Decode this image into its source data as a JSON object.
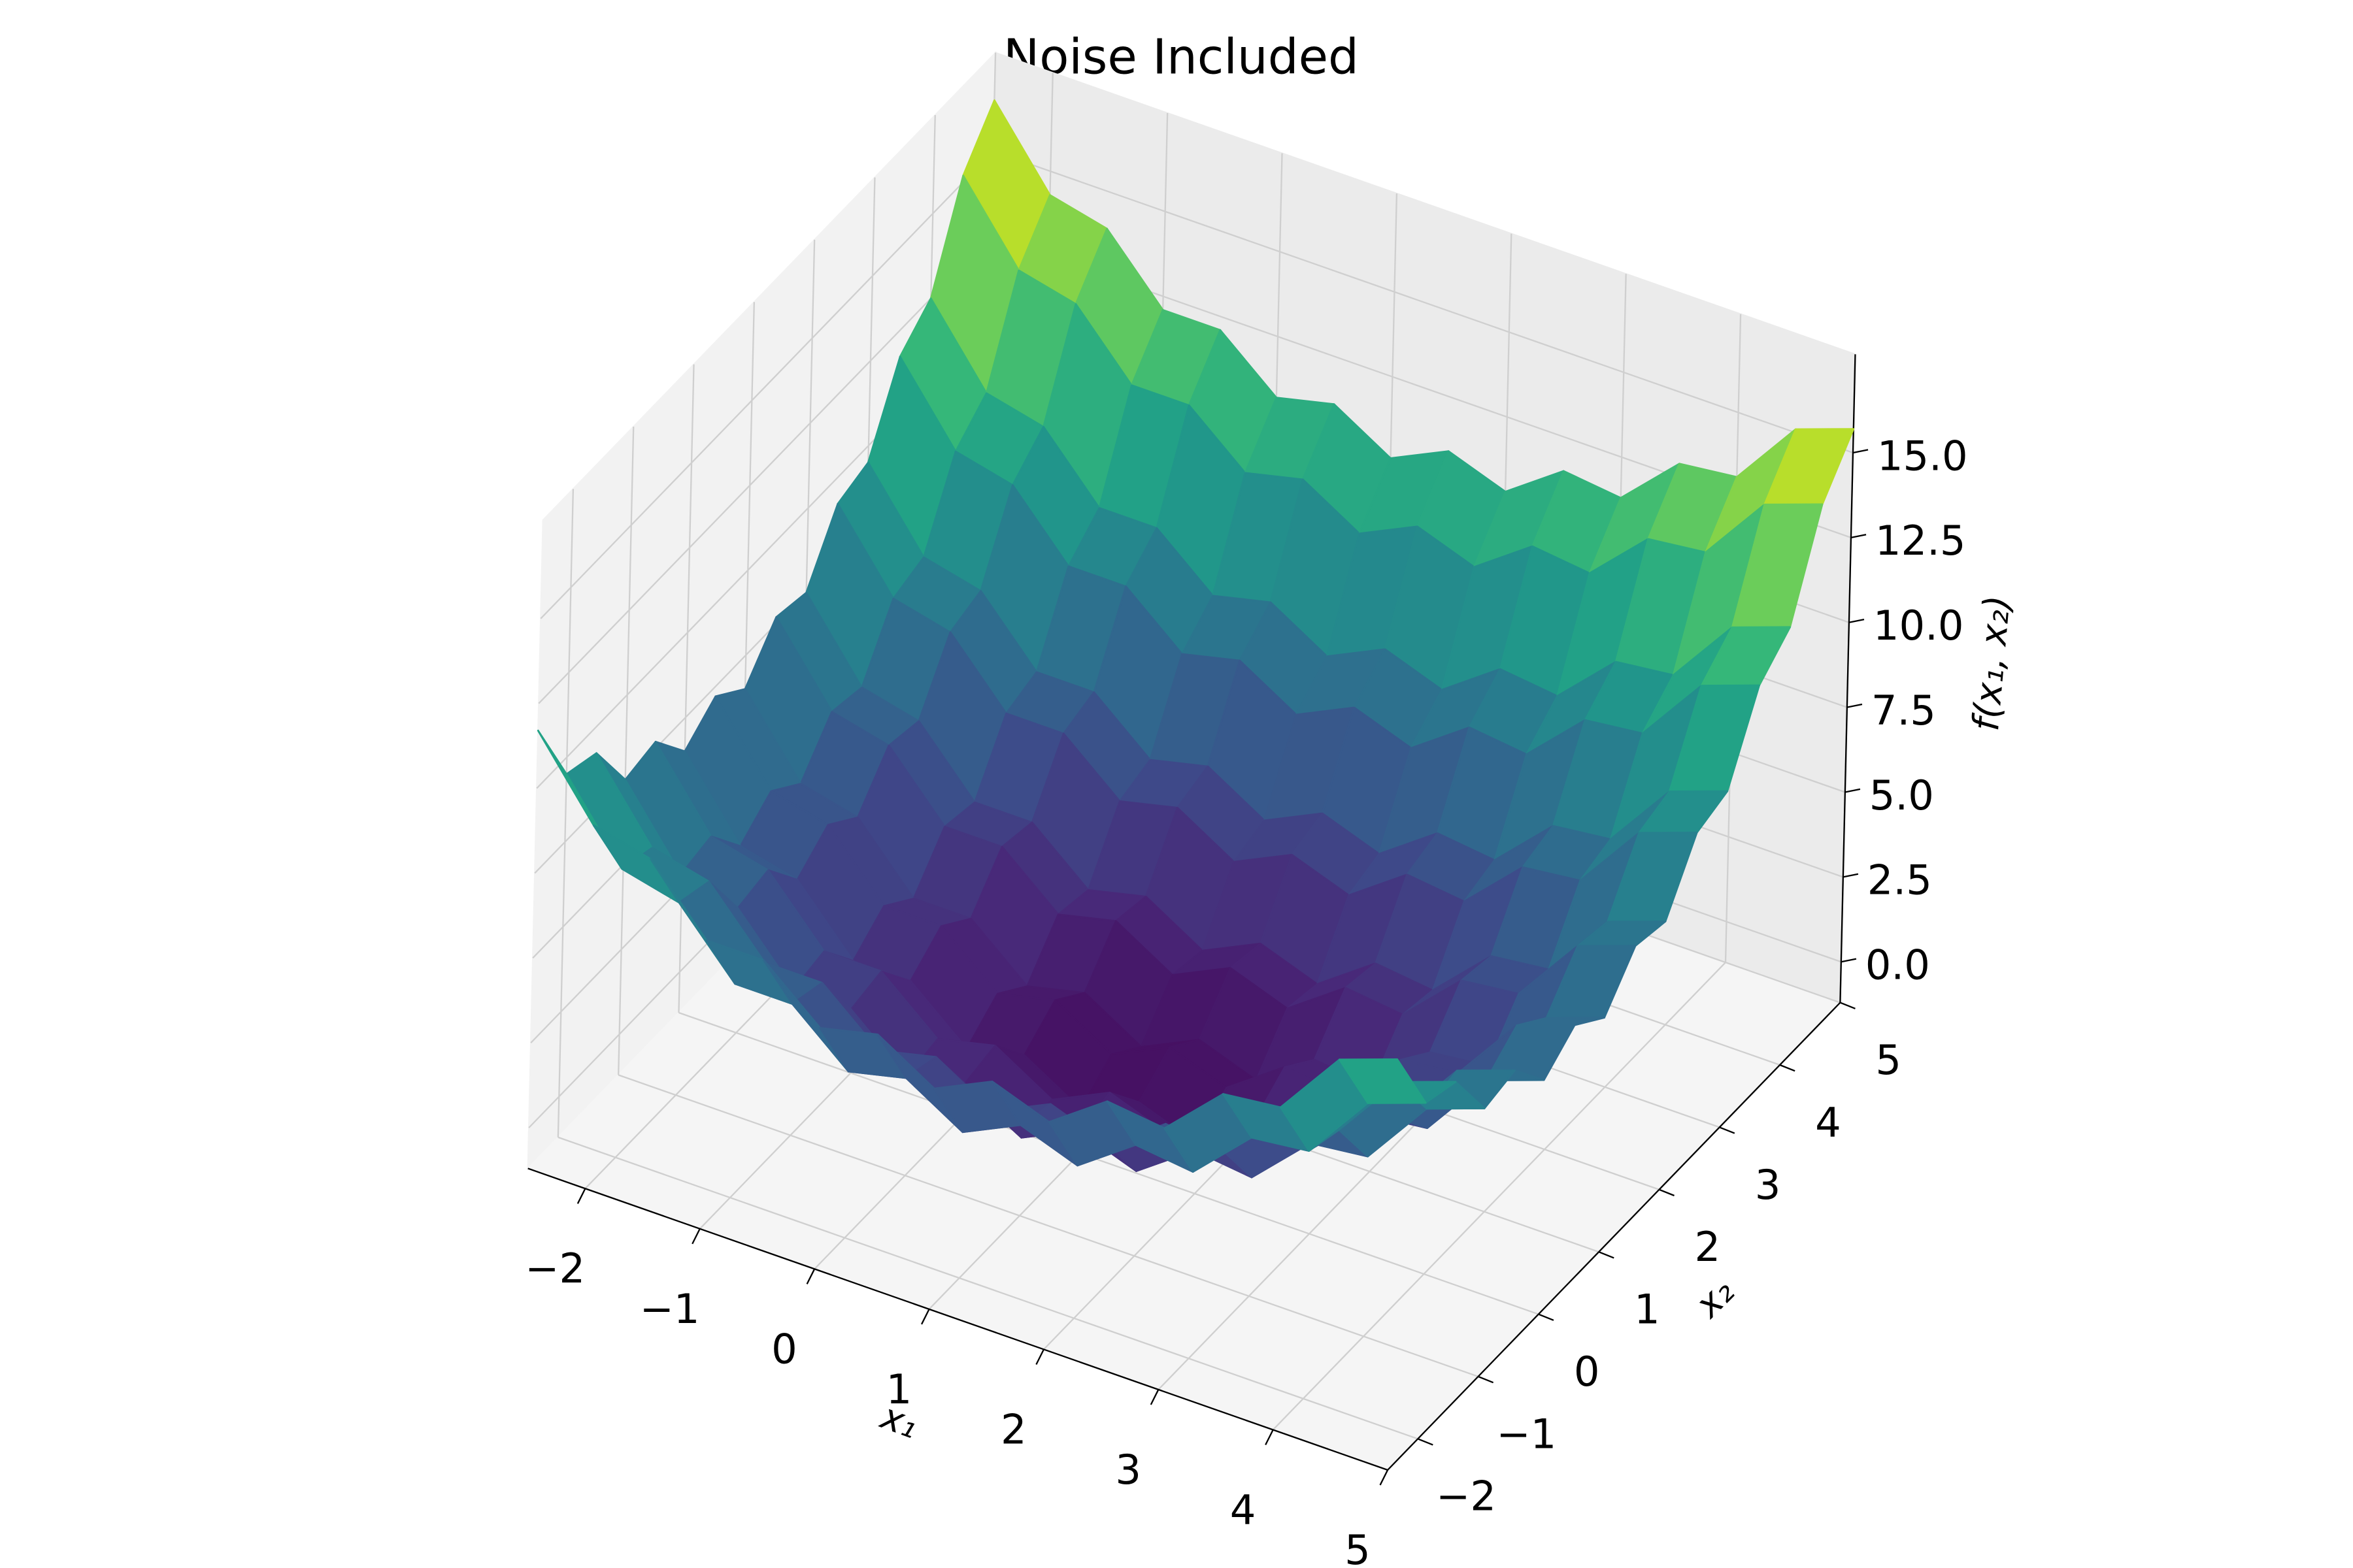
{
  "chart_data": {
    "type": "surface",
    "title": "Noise Included",
    "xlabel": "x₁",
    "ylabel": "x₂",
    "zlabel": "f(x₁, x₂)",
    "x": [
      -2.5,
      -2,
      -1.5,
      -1,
      -0.5,
      0,
      0.5,
      1,
      1.5,
      2,
      2.5,
      3,
      3.5,
      4,
      4.5,
      5
    ],
    "y": [
      -2.5,
      -2,
      -1.5,
      -1,
      -0.5,
      0,
      0.5,
      1,
      1.5,
      2,
      2.5,
      3,
      3.5,
      4,
      4.5,
      5
    ],
    "z": [
      [
        11.7,
        9.5,
        9.1,
        7.3,
        7.3,
        5.9,
        6.3,
        5.3,
        6.1,
        5.5,
        6.7,
        6.5,
        8.1,
        8.3,
        10.3,
        10.9
      ],
      [
        9.5,
        7.3,
        6.9,
        5.1,
        5.1,
        3.7,
        4.1,
        3.1,
        3.9,
        3.3,
        4.5,
        4.3,
        5.9,
        6.1,
        8.1,
        8.7
      ],
      [
        9.2,
        7.0,
        6.6,
        4.8,
        4.8,
        3.4,
        3.8,
        2.8,
        3.6,
        3.0,
        4.2,
        4.0,
        5.6,
        5.8,
        7.8,
        8.4
      ],
      [
        7.5,
        5.3,
        4.9,
        3.1,
        3.1,
        1.7,
        2.1,
        1.1,
        1.9,
        1.3,
        2.5,
        2.3,
        3.9,
        4.1,
        6.1,
        6.7
      ],
      [
        7.7,
        5.5,
        5.1,
        3.3,
        3.3,
        1.9,
        2.3,
        1.3,
        2.1,
        1.5,
        2.7,
        2.5,
        4.1,
        4.3,
        6.3,
        6.9
      ],
      [
        6.5,
        4.3,
        3.9,
        2.1,
        2.1,
        0.7,
        1.1,
        0.1,
        0.9,
        0.3,
        1.5,
        1.3,
        2.9,
        3.1,
        5.1,
        5.7
      ],
      [
        7.2,
        5.0,
        4.6,
        2.8,
        2.8,
        1.4,
        1.8,
        0.8,
        1.6,
        1.0,
        2.2,
        2.0,
        3.6,
        3.8,
        5.8,
        6.4
      ],
      [
        6.5,
        4.3,
        3.9,
        2.1,
        2.1,
        0.7,
        1.1,
        0.1,
        0.9,
        0.3,
        1.5,
        1.3,
        2.9,
        3.1,
        5.1,
        5.7
      ],
      [
        7.7,
        5.5,
        5.1,
        3.3,
        3.3,
        1.9,
        2.3,
        1.3,
        2.1,
        1.5,
        2.7,
        2.5,
        4.1,
        4.3,
        6.3,
        6.9
      ],
      [
        7.5,
        5.3,
        4.9,
        3.1,
        3.1,
        1.7,
        2.1,
        1.1,
        1.9,
        1.3,
        2.5,
        2.3,
        3.9,
        4.1,
        6.1,
        6.7
      ],
      [
        9.2,
        7.0,
        6.6,
        4.8,
        4.8,
        3.4,
        3.8,
        2.8,
        3.6,
        3.0,
        4.2,
        4.0,
        5.6,
        5.8,
        7.8,
        8.4
      ],
      [
        9.5,
        7.3,
        6.9,
        5.1,
        5.1,
        3.7,
        4.1,
        3.1,
        3.9,
        3.3,
        4.5,
        4.3,
        5.9,
        6.1,
        8.1,
        8.7
      ],
      [
        11.7,
        9.5,
        9.1,
        7.3,
        7.3,
        5.9,
        6.3,
        5.3,
        6.1,
        5.5,
        6.7,
        6.5,
        8.1,
        8.3,
        10.3,
        10.9
      ],
      [
        12.5,
        10.3,
        9.9,
        8.1,
        8.1,
        6.7,
        7.1,
        6.1,
        6.9,
        6.3,
        7.5,
        7.3,
        8.9,
        9.1,
        11.1,
        11.7
      ],
      [
        15.2,
        13.0,
        12.6,
        10.8,
        10.8,
        9.4,
        9.8,
        8.8,
        9.6,
        9.0,
        10.2,
        10.0,
        11.6,
        11.8,
        13.8,
        14.4
      ],
      [
        16.5,
        14.3,
        13.9,
        12.1,
        12.1,
        10.7,
        11.1,
        10.1,
        10.9,
        10.3,
        11.5,
        11.3,
        12.9,
        13.1,
        15.1,
        15.7
      ]
    ],
    "xlim": [
      -2.5,
      5
    ],
    "ylim": [
      -2.5,
      5
    ],
    "zlim": [
      -1.2,
      17.9
    ],
    "xticks": [
      {
        "value": -2,
        "label": "−2"
      },
      {
        "value": -1,
        "label": "−1"
      },
      0,
      1,
      2,
      3,
      4,
      5
    ],
    "yticks": [
      {
        "value": -2,
        "label": "−2"
      },
      {
        "value": -1,
        "label": "−1"
      },
      0,
      1,
      2,
      3,
      4,
      5
    ],
    "zticks": [
      {
        "value": 0,
        "label": "0.0"
      },
      {
        "value": 2.5,
        "label": "2.5"
      },
      {
        "value": 5,
        "label": "5.0"
      },
      {
        "value": 7.5,
        "label": "7.5"
      },
      {
        "value": 10,
        "label": "10.0"
      },
      {
        "value": 12.5,
        "label": "12.5"
      },
      {
        "value": 15,
        "label": "15.0"
      }
    ],
    "grid": true,
    "colormap": [
      "#440154",
      "#482878",
      "#3e4989",
      "#31688e",
      "#26828e",
      "#1f9e89",
      "#35b779",
      "#6ece58",
      "#b5de2b",
      "#fde725"
    ]
  }
}
